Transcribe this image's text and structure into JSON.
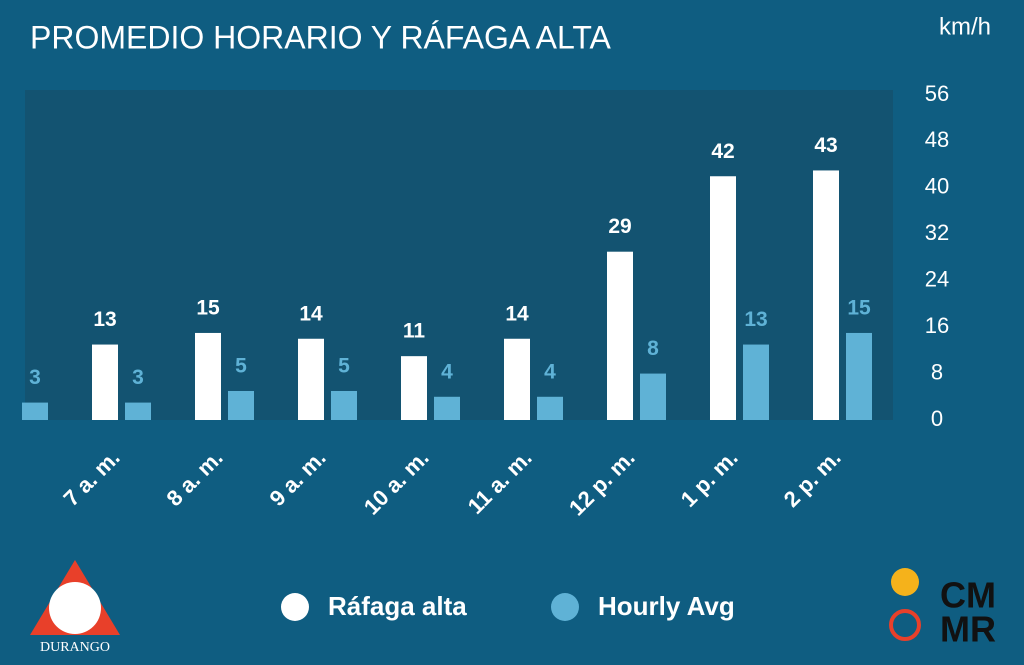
{
  "chart_data": {
    "type": "bar",
    "title": "PROMEDIO HORARIO Y RÁFAGA ALTA",
    "y_label": "km/h",
    "categories": [
      null,
      "7 a. m.",
      "8 a. m.",
      "9 a. m.",
      "10 a. m.",
      "11 a. m.",
      "12 p. m.",
      "1 p. m.",
      "2 p. m."
    ],
    "series": [
      {
        "name": "Ráfaga alta",
        "color": "#ffffff",
        "values": [
          null,
          13,
          15,
          14,
          11,
          14,
          29,
          42,
          43
        ]
      },
      {
        "name": "Hourly Avg",
        "color": "#5fb2d6",
        "values": [
          3,
          3,
          5,
          5,
          4,
          4,
          8,
          13,
          15
        ]
      }
    ],
    "ylim": [
      0,
      56
    ],
    "yticks": [
      0,
      8,
      16,
      24,
      32,
      40,
      48,
      56
    ],
    "y_axis_side": "right",
    "grid": false
  },
  "logos": {
    "left": "DURANGO",
    "right": [
      "CM",
      "MR"
    ]
  }
}
